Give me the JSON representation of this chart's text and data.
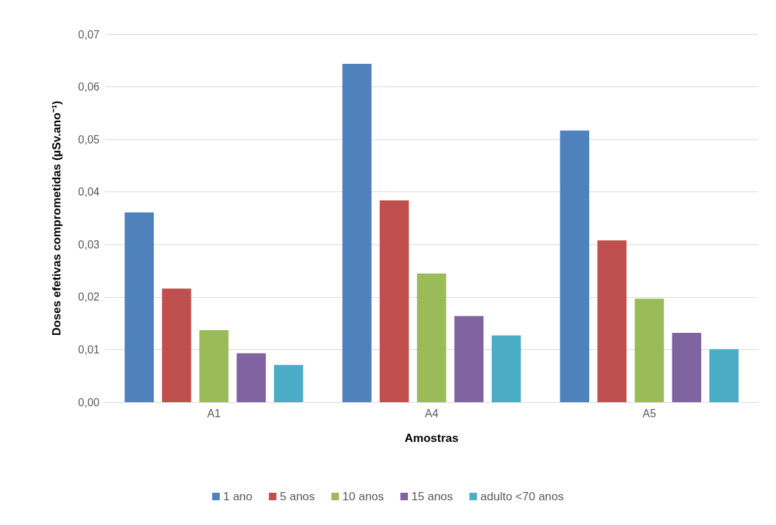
{
  "chart_data": {
    "type": "bar",
    "xlabel": "Amostras",
    "ylabel": "Doses efetivas comprometidas (µSv.ano⁻¹)",
    "categories": [
      "A1",
      "A4",
      "A5"
    ],
    "series": [
      {
        "name": "1 ano",
        "color": "#4f81bd",
        "values": [
          0.0361,
          0.0644,
          0.0517
        ]
      },
      {
        "name": "5 anos",
        "color": "#c0504d",
        "values": [
          0.0216,
          0.0384,
          0.0308
        ]
      },
      {
        "name": "10 anos",
        "color": "#9bbb59",
        "values": [
          0.0137,
          0.0245,
          0.0197
        ]
      },
      {
        "name": "15 anos",
        "color": "#8064a2",
        "values": [
          0.0093,
          0.0164,
          0.0132
        ]
      },
      {
        "name": "adulto <70 anos",
        "color": "#4bacc6",
        "values": [
          0.0071,
          0.0127,
          0.0101
        ]
      }
    ],
    "ylim": [
      0,
      0.07
    ],
    "yticks": [
      {
        "value": 0,
        "label": "0,00"
      },
      {
        "value": 0.01,
        "label": "0,01"
      },
      {
        "value": 0.02,
        "label": "0,02"
      },
      {
        "value": 0.03,
        "label": "0,03"
      },
      {
        "value": 0.04,
        "label": "0,04"
      },
      {
        "value": 0.05,
        "label": "0,05"
      },
      {
        "value": 0.06,
        "label": "0,06"
      },
      {
        "value": 0.07,
        "label": "0,07"
      }
    ],
    "grid": "y",
    "legend": "bottom"
  }
}
